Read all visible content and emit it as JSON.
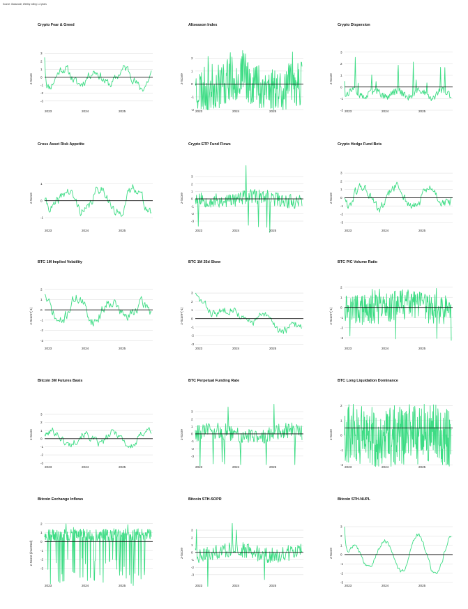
{
  "source_note": "Source: Glassnode, Weekly rolling 1-3 years",
  "colors": {
    "series": "#3ddc84",
    "zero_line": "#111111",
    "grid": "#d9d9d9",
    "text": "#222222"
  },
  "chart_data": [
    {
      "type": "line",
      "title": "Crypto Fear & Greed",
      "ylabel": "z-Score",
      "yticks": [
        -3,
        -2,
        -1,
        0,
        1,
        2,
        3
      ],
      "ylim": [
        -4.6,
        4.2
      ],
      "xticks": [
        "2023",
        "2024",
        "2025"
      ],
      "x_range": [
        "2022-11",
        "2025-10"
      ],
      "n_points": 150,
      "shape": "cycle",
      "amp": 1.3,
      "noise": 1.1,
      "seed": 11,
      "min": -4.2,
      "max": 3.9,
      "start_value": 2.5,
      "series": [
        {
          "name": "",
          "color": "#3ddc84"
        }
      ]
    },
    {
      "type": "line",
      "title": "Altseason Index",
      "ylabel": "z-Score",
      "yticks": [
        -2,
        -1,
        0,
        1,
        2
      ],
      "ylim": [
        -2.3,
        3.1
      ],
      "xticks": [
        "2023",
        "2024",
        "2025"
      ],
      "x_range": [
        "2022-11",
        "2025-10"
      ],
      "n_points": 260,
      "shape": "noise",
      "amp": 0.4,
      "noise": 1.8,
      "seed": 23,
      "min": -2.0,
      "max": 2.6,
      "start_value": 0.0,
      "series": [
        {
          "name": "",
          "color": "#3ddc84"
        }
      ]
    },
    {
      "type": "line",
      "title": "Crypto Dispersion",
      "ylabel": "z-Score",
      "yticks": [
        -2,
        -1,
        0,
        1,
        2,
        3
      ],
      "ylim": [
        -2.3,
        3.7
      ],
      "xticks": [
        "2023",
        "2024",
        "2025"
      ],
      "x_range": [
        "2022-11",
        "2025-10"
      ],
      "n_points": 150,
      "shape": "spiky",
      "amp": 0.5,
      "noise": 0.6,
      "seed": 37,
      "min": -1.8,
      "max": 3.4,
      "start_value": 0.5,
      "series": [
        {
          "name": "",
          "color": "#3ddc84"
        }
      ]
    },
    {
      "type": "line",
      "title": "Cross Asset Risk Appetite",
      "ylabel": "z-Score",
      "yticks": [
        -1,
        0,
        1
      ],
      "ylim": [
        -1.9,
        2.2
      ],
      "xticks": [
        "2023",
        "2024",
        "2025"
      ],
      "x_range": [
        "2022-11",
        "2025-10"
      ],
      "n_points": 150,
      "shape": "cycle",
      "amp": 0.6,
      "noise": 0.55,
      "seed": 41,
      "min": -1.7,
      "max": 1.9,
      "start_value": 0.0,
      "series": [
        {
          "name": "",
          "color": "#3ddc84"
        }
      ]
    },
    {
      "type": "line",
      "title": "Crypto ETP Fund Flows",
      "ylabel": "z-Score",
      "yticks": [
        -3,
        -2,
        -1,
        0,
        1,
        2,
        3
      ],
      "ylim": [
        -4.6,
        4.8
      ],
      "xticks": [
        "2023",
        "2024",
        "2025"
      ],
      "x_range": [
        "2022-11",
        "2025-10"
      ],
      "n_points": 180,
      "shape": "noise",
      "amp": 0.3,
      "noise": 1.0,
      "seed": 53,
      "min": -4.6,
      "max": 4.6,
      "start_value": 0.0,
      "series": [
        {
          "name": "",
          "color": "#3ddc84"
        }
      ]
    },
    {
      "type": "line",
      "title": "Crypto Hedge Fund Bets",
      "ylabel": "z-Score",
      "yticks": [
        -3,
        -2,
        -1,
        0,
        1,
        2,
        3
      ],
      "ylim": [
        -4.3,
        4.2
      ],
      "xticks": [
        "2023",
        "2024",
        "2025"
      ],
      "x_range": [
        "2022-11",
        "2025-10"
      ],
      "n_points": 150,
      "shape": "cycle",
      "amp": 1.0,
      "noise": 1.2,
      "seed": 61,
      "min": -4.0,
      "max": 3.8,
      "start_value": 0.0,
      "series": [
        {
          "name": "",
          "color": "#3ddc84"
        }
      ]
    },
    {
      "type": "line",
      "title": "BTC 1M Implied Volatility",
      "ylabel": "z-Score*(-1)",
      "yticks": [
        -3,
        -2,
        -1,
        0,
        1,
        2
      ],
      "ylim": [
        -4.0,
        2.8
      ],
      "xticks": [
        "2023",
        "2024",
        "2025"
      ],
      "x_range": [
        "2022-11",
        "2025-10"
      ],
      "n_points": 150,
      "shape": "cycle",
      "amp": 0.9,
      "noise": 1.0,
      "seed": 71,
      "min": -3.8,
      "max": 2.6,
      "start_value": 1.5,
      "series": [
        {
          "name": "",
          "color": "#3ddc84"
        }
      ]
    },
    {
      "type": "line",
      "title": "BTC 1M 25d Skew",
      "ylabel": "z-Score*(-1)",
      "yticks": [
        -3,
        -2,
        -1,
        0,
        1,
        2,
        3
      ],
      "ylim": [
        -3.8,
        4.4
      ],
      "xticks": [
        "2023",
        "2024",
        "2025"
      ],
      "x_range": [
        "2022-11",
        "2025-10"
      ],
      "n_points": 150,
      "shape": "trend",
      "amp": 1.2,
      "noise": 0.9,
      "seed": 83,
      "min": -3.3,
      "max": 3.7,
      "start_value": 3.0,
      "series": [
        {
          "name": "",
          "color": "#3ddc84"
        }
      ]
    },
    {
      "type": "line",
      "title": "BTC P/C Volume Ratio",
      "ylabel": "z-Score*(-1)",
      "yticks": [
        -3,
        -2,
        -1,
        0,
        1,
        2
      ],
      "ylim": [
        -4.3,
        2.6
      ],
      "xticks": [
        "2023",
        "2024",
        "2025"
      ],
      "x_range": [
        "2022-11",
        "2025-10"
      ],
      "n_points": 260,
      "shape": "noise",
      "amp": 0.3,
      "noise": 1.5,
      "seed": 97,
      "min": -4.0,
      "max": 2.0,
      "start_value": 0.0,
      "series": [
        {
          "name": "",
          "color": "#3ddc84"
        }
      ]
    },
    {
      "type": "line",
      "title": "Bitcoin 3M Futures Basis",
      "ylabel": "z-Score",
      "yticks": [
        -3,
        -2,
        -1,
        0,
        1,
        2,
        3
      ],
      "ylim": [
        -3.8,
        4.8
      ],
      "xticks": [
        "2023",
        "2024",
        "2025"
      ],
      "x_range": [
        "2022-11",
        "2025-10"
      ],
      "n_points": 150,
      "shape": "cycle",
      "amp": 1.0,
      "noise": 0.9,
      "seed": 101,
      "min": -3.2,
      "max": 4.6,
      "start_value": 0.5,
      "series": [
        {
          "name": "",
          "color": "#3ddc84"
        }
      ]
    },
    {
      "type": "line",
      "title": "BTC Perpetual Funding Rate",
      "ylabel": "z-Score",
      "yticks": [
        -3,
        -2,
        -1,
        0,
        1,
        2,
        3
      ],
      "ylim": [
        -4.8,
        4.6
      ],
      "xticks": [
        "2023",
        "2024",
        "2025"
      ],
      "x_range": [
        "2022-11",
        "2025-10"
      ],
      "n_points": 180,
      "shape": "noise",
      "amp": 0.4,
      "noise": 1.1,
      "seed": 113,
      "min": -4.5,
      "max": 4.4,
      "start_value": 0.5,
      "series": [
        {
          "name": "",
          "color": "#3ddc84"
        }
      ]
    },
    {
      "type": "line",
      "title": "BTC Long Liquidation Dominance",
      "ylabel": "z-Score",
      "yticks": [
        -2,
        -1,
        0,
        1,
        2
      ],
      "ylim": [
        -2.3,
        2.4
      ],
      "xticks": [
        "2023",
        "2024",
        "2025"
      ],
      "x_range": [
        "2022-11",
        "2025-10"
      ],
      "n_points": 320,
      "shape": "noise",
      "amp": 0.2,
      "noise": 2.0,
      "seed": 127,
      "min": -2.1,
      "max": 2.1,
      "start_value": 0.0,
      "zero_value": 0.5,
      "series": [
        {
          "name": "",
          "color": "#3ddc84"
        }
      ]
    },
    {
      "type": "line",
      "title": "Bitcoin Exchange Inflows",
      "ylabel": "z-Score (inverted)",
      "yticks": [
        -3,
        -2,
        -1,
        0,
        1,
        2
      ],
      "ylim": [
        -5.2,
        2.6
      ],
      "xticks": [
        "2023",
        "2024",
        "2025"
      ],
      "x_range": [
        "2022-11",
        "2025-10"
      ],
      "n_points": 260,
      "shape": "inflow",
      "amp": 0.3,
      "noise": 0.8,
      "seed": 131,
      "min": -5.0,
      "max": 2.0,
      "start_value": 0.5,
      "series": [
        {
          "name": "",
          "color": "#3ddc84"
        }
      ]
    },
    {
      "type": "line",
      "title": "Bitcoin STH-SOPR",
      "ylabel": "z-Score",
      "yticks": [
        -3,
        -2,
        -1,
        0,
        1,
        2,
        3
      ],
      "ylim": [
        -4.8,
        4.6
      ],
      "xticks": [
        "2023",
        "2024",
        "2025"
      ],
      "x_range": [
        "2022-11",
        "2025-10"
      ],
      "n_points": 180,
      "shape": "noise",
      "amp": 0.4,
      "noise": 1.05,
      "seed": 149,
      "min": -4.6,
      "max": 4.2,
      "start_value": 0.5,
      "series": [
        {
          "name": "",
          "color": "#3ddc84"
        }
      ]
    },
    {
      "type": "line",
      "title": "Bitcoin STH-NUPL",
      "ylabel": "z-Score",
      "yticks": [
        -3,
        -2,
        -1,
        0,
        1,
        2,
        3
      ],
      "ylim": [
        -3.6,
        3.9
      ],
      "xticks": [
        "2023",
        "2024",
        "2025"
      ],
      "x_range": [
        "2022-11",
        "2025-10"
      ],
      "n_points": 150,
      "shape": "cycle",
      "amp": 1.6,
      "noise": 0.45,
      "seed": 157,
      "min": -3.3,
      "max": 3.4,
      "start_value": 3.0,
      "series": [
        {
          "name": "",
          "color": "#3ddc84"
        }
      ]
    }
  ]
}
